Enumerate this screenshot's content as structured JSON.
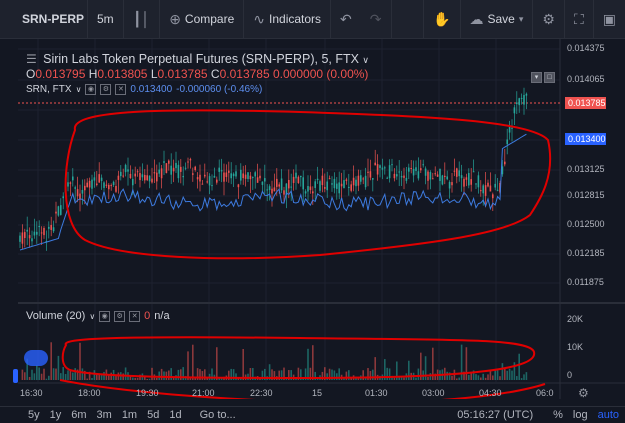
{
  "toolbar": {
    "symbol": "SRN-PERP",
    "interval": "5m",
    "compare": "Compare",
    "indicators": "Indicators",
    "save": "Save"
  },
  "legend": {
    "title": "Sirin Labs Token Perpetual Futures (SRN-PERP), 5, FTX",
    "open_label": "O",
    "open": "0.013795",
    "high_label": "H",
    "high": "0.013805",
    "low_label": "L",
    "low": "0.013785",
    "close_label": "C",
    "close": "0.013785",
    "change": "0.000000 (0.00%)"
  },
  "compare_legend": {
    "symbol": "SRN, FTX",
    "value": "0.013400",
    "change": "-0.000060 (-0.46%)"
  },
  "price_axis": {
    "ticks": [
      "0.014375",
      "0.014065",
      "0.013125",
      "0.012815",
      "0.012500",
      "0.012185",
      "0.011875"
    ],
    "tag_current": "0.013785",
    "tag_compare": "0.013400"
  },
  "volume": {
    "label": "Volume (20)",
    "value": "0",
    "value2": "n/a",
    "ticks": [
      "20K",
      "10K",
      "0"
    ]
  },
  "time_axis": {
    "ticks": [
      "16:30",
      "18:00",
      "19:30",
      "21:00",
      "22:30",
      "15",
      "01:30",
      "03:00",
      "04:30",
      "06:0"
    ]
  },
  "bottom": {
    "ranges": [
      "5y",
      "1y",
      "6m",
      "3m",
      "1m",
      "5d",
      "1d"
    ],
    "goto": "Go to...",
    "time": "05:16:27 (UTC)",
    "percent": "%",
    "log": "log",
    "auto": "auto"
  },
  "colors": {
    "up": "#26a69a",
    "down": "#ef5350",
    "compare": "#3d7be0",
    "annotation": "#e00000"
  }
}
